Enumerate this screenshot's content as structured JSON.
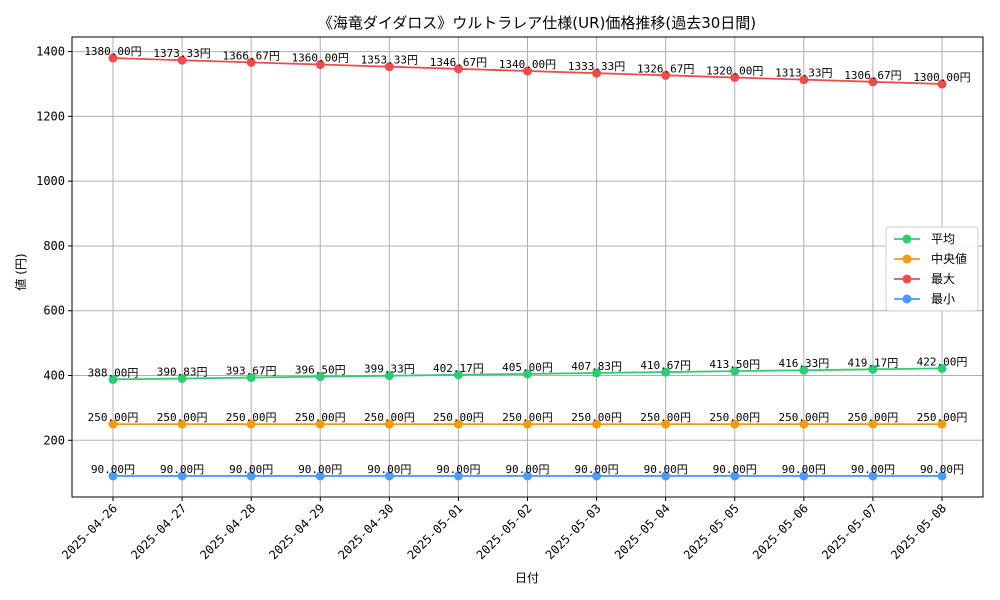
{
  "chart_data": {
    "type": "line",
    "title": "《海竜ダイダロス》ウルトラレア仕様(UR)価格推移(過去30日間)",
    "xlabel": "日付",
    "ylabel": "値 (円)",
    "x": [
      "2025-04-26",
      "2025-04-27",
      "2025-04-28",
      "2025-04-29",
      "2025-04-30",
      "2025-05-01",
      "2025-05-02",
      "2025-05-03",
      "2025-05-04",
      "2025-05-05",
      "2025-05-06",
      "2025-05-07",
      "2025-05-08"
    ],
    "ylim": [
      25,
      1445
    ],
    "yticks": [
      200,
      400,
      600,
      800,
      1000,
      1200,
      1400
    ],
    "grid": true,
    "legend_position": "center-right",
    "value_suffix": "円",
    "series": [
      {
        "name": "平均",
        "color": "#2ecc71",
        "values": [
          388.0,
          390.83,
          393.67,
          396.5,
          399.33,
          402.17,
          405.0,
          407.83,
          410.67,
          413.5,
          416.33,
          419.17,
          422.0
        ]
      },
      {
        "name": "中央値",
        "color": "#f39c12",
        "values": [
          250.0,
          250.0,
          250.0,
          250.0,
          250.0,
          250.0,
          250.0,
          250.0,
          250.0,
          250.0,
          250.0,
          250.0,
          250.0
        ]
      },
      {
        "name": "最大",
        "color": "#ef4b4b",
        "values": [
          1380.0,
          1373.33,
          1366.67,
          1360.0,
          1353.33,
          1346.67,
          1340.0,
          1333.33,
          1326.67,
          1320.0,
          1313.33,
          1306.67,
          1300.0
        ]
      },
      {
        "name": "最小",
        "color": "#4b9bff",
        "values": [
          90.0,
          90.0,
          90.0,
          90.0,
          90.0,
          90.0,
          90.0,
          90.0,
          90.0,
          90.0,
          90.0,
          90.0,
          90.0
        ]
      }
    ]
  }
}
